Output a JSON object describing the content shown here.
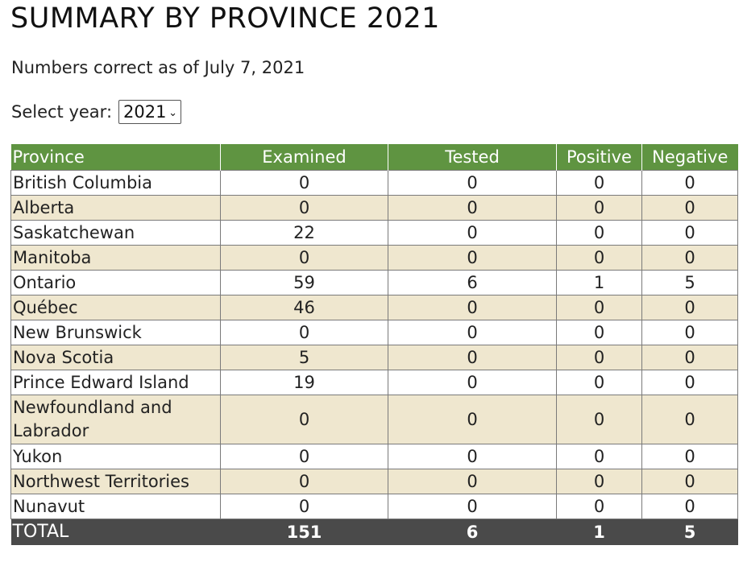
{
  "page": {
    "title": "SUMMARY BY PROVINCE 2021",
    "note": "Numbers correct as of July 7, 2021",
    "year_label": "Select year:",
    "year_selected": "2021"
  },
  "colors": {
    "header_green": "#5f9441",
    "stripe": "#efe7cf",
    "total_bar": "#4a4a4a"
  },
  "table": {
    "headers": [
      "Province",
      "Examined",
      "Tested",
      "Positive",
      "Negative"
    ],
    "rows": [
      {
        "province": "British Columbia",
        "examined": "0",
        "tested": "0",
        "positive": "0",
        "negative": "0"
      },
      {
        "province": "Alberta",
        "examined": "0",
        "tested": "0",
        "positive": "0",
        "negative": "0"
      },
      {
        "province": "Saskatchewan",
        "examined": "22",
        "tested": "0",
        "positive": "0",
        "negative": "0"
      },
      {
        "province": "Manitoba",
        "examined": "0",
        "tested": "0",
        "positive": "0",
        "negative": "0"
      },
      {
        "province": "Ontario",
        "examined": "59",
        "tested": "6",
        "positive": "1",
        "negative": "5"
      },
      {
        "province": "Québec",
        "examined": "46",
        "tested": "0",
        "positive": "0",
        "negative": "0"
      },
      {
        "province": "New Brunswick",
        "examined": "0",
        "tested": "0",
        "positive": "0",
        "negative": "0"
      },
      {
        "province": "Nova Scotia",
        "examined": "5",
        "tested": "0",
        "positive": "0",
        "negative": "0"
      },
      {
        "province": "Prince Edward Island",
        "examined": "19",
        "tested": "0",
        "positive": "0",
        "negative": "0"
      },
      {
        "province": "Newfoundland and Labrador",
        "examined": "0",
        "tested": "0",
        "positive": "0",
        "negative": "0"
      },
      {
        "province": "Yukon",
        "examined": "0",
        "tested": "0",
        "positive": "0",
        "negative": "0"
      },
      {
        "province": "Northwest Territories",
        "examined": "0",
        "tested": "0",
        "positive": "0",
        "negative": "0"
      },
      {
        "province": "Nunavut",
        "examined": "0",
        "tested": "0",
        "positive": "0",
        "negative": "0"
      }
    ],
    "total": {
      "label": "TOTAL",
      "examined": "151",
      "tested": "6",
      "positive": "1",
      "negative": "5"
    }
  }
}
